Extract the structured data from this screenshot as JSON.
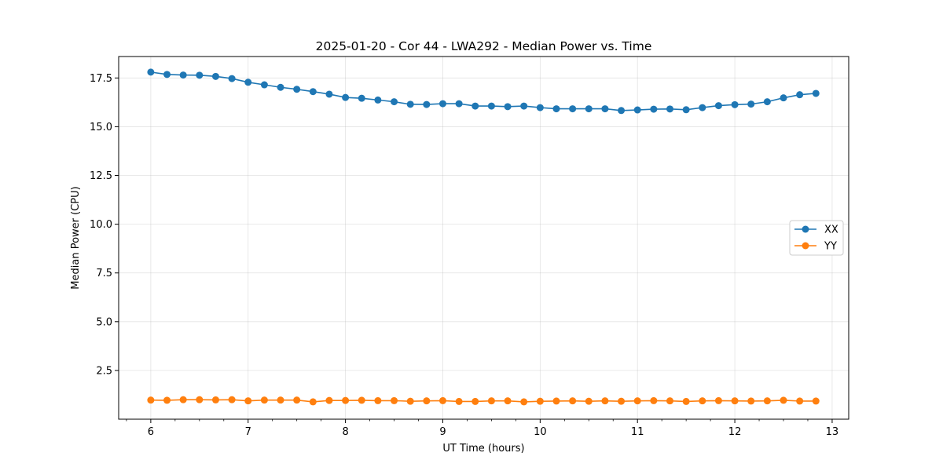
{
  "chart_data": {
    "type": "line",
    "title": "2025-01-20 - Cor 44 - LWA292 - Median Power vs. Time",
    "xlabel": "UT Time (hours)",
    "ylabel": "Median Power (CPU)",
    "xlim": [
      5.67,
      13.17
    ],
    "ylim": [
      0.0,
      18.6
    ],
    "xticks": [
      6,
      7,
      8,
      9,
      10,
      11,
      12,
      13
    ],
    "yticks": [
      2.5,
      5.0,
      7.5,
      10.0,
      12.5,
      15.0,
      17.5
    ],
    "ytick_labels": [
      "2.5",
      "5.0",
      "7.5",
      "10.0",
      "12.5",
      "15.0",
      "17.5"
    ],
    "grid": true,
    "legend_position": "center-right",
    "x": [
      6.0,
      6.1667,
      6.3333,
      6.5,
      6.6667,
      6.8333,
      7.0,
      7.1667,
      7.3333,
      7.5,
      7.6667,
      7.8333,
      8.0,
      8.1667,
      8.3333,
      8.5,
      8.6667,
      8.8333,
      9.0,
      9.1667,
      9.3333,
      9.5,
      9.6667,
      9.8333,
      10.0,
      10.1667,
      10.3333,
      10.5,
      10.6667,
      10.8333,
      11.0,
      11.1667,
      11.3333,
      11.5,
      11.6667,
      11.8333,
      12.0,
      12.1667,
      12.3333,
      12.5,
      12.6667,
      12.8333
    ],
    "series": [
      {
        "name": "XX",
        "color": "#1f77b4",
        "values": [
          17.8,
          17.68,
          17.65,
          17.64,
          17.58,
          17.47,
          17.28,
          17.15,
          17.02,
          16.92,
          16.8,
          16.67,
          16.5,
          16.46,
          16.37,
          16.28,
          16.15,
          16.14,
          16.18,
          16.18,
          16.06,
          16.06,
          16.03,
          16.06,
          15.98,
          15.92,
          15.92,
          15.92,
          15.92,
          15.83,
          15.86,
          15.9,
          15.91,
          15.87,
          15.98,
          16.08,
          16.13,
          16.16,
          16.28,
          16.48,
          16.64,
          16.71
        ]
      },
      {
        "name": "YY",
        "color": "#ff7f0e",
        "values": [
          0.98,
          0.97,
          1.0,
          1.0,
          0.99,
          1.0,
          0.94,
          0.98,
          0.98,
          0.98,
          0.89,
          0.96,
          0.96,
          0.97,
          0.95,
          0.95,
          0.92,
          0.94,
          0.95,
          0.91,
          0.91,
          0.94,
          0.94,
          0.89,
          0.92,
          0.93,
          0.94,
          0.92,
          0.94,
          0.92,
          0.94,
          0.95,
          0.94,
          0.91,
          0.94,
          0.95,
          0.94,
          0.93,
          0.94,
          0.97,
          0.93,
          0.93
        ]
      }
    ]
  }
}
